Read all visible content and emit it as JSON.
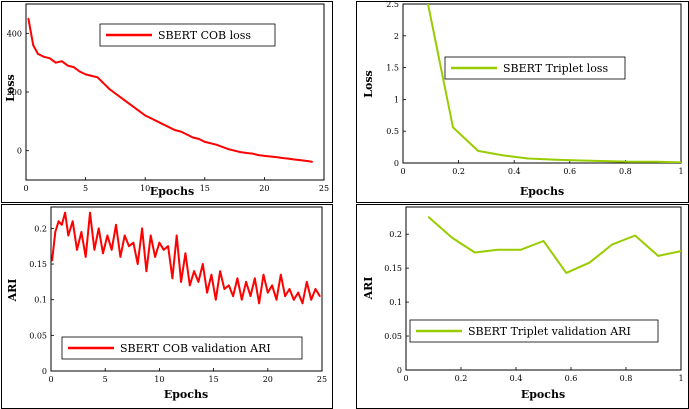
{
  "chart_data": [
    {
      "type": "line",
      "title": "",
      "xlabel": "Epochs",
      "ylabel": "Loss",
      "xlim": [
        0,
        25
      ],
      "ylim": [
        -100,
        500
      ],
      "xticks": [
        0,
        5,
        10,
        15,
        20,
        25
      ],
      "yticks": [
        0,
        200,
        400
      ],
      "legend_loc": "top-right",
      "series": [
        {
          "name": "SBERT COB loss",
          "color": "#ff0000",
          "x": [
            0.2,
            0.6,
            1,
            1.5,
            2,
            2.5,
            3,
            3.5,
            4,
            4.5,
            5,
            5.5,
            6,
            6.5,
            7,
            7.5,
            8,
            8.5,
            9,
            9.5,
            10,
            10.5,
            11,
            11.5,
            12,
            12.5,
            13,
            13.5,
            14,
            14.5,
            15,
            15.5,
            16,
            16.5,
            17,
            17.5,
            18,
            18.5,
            19,
            19.5,
            20,
            20.5,
            21,
            21.5,
            22,
            22.5,
            23,
            23.5,
            24
          ],
          "y": [
            450,
            360,
            330,
            320,
            315,
            300,
            305,
            290,
            285,
            270,
            260,
            255,
            250,
            230,
            210,
            195,
            180,
            165,
            150,
            135,
            120,
            110,
            100,
            90,
            80,
            70,
            65,
            55,
            45,
            40,
            30,
            25,
            20,
            12,
            5,
            0,
            -5,
            -8,
            -10,
            -15,
            -18,
            -20,
            -22,
            -25,
            -27,
            -30,
            -32,
            -35,
            -38
          ]
        }
      ]
    },
    {
      "type": "line",
      "title": "",
      "xlabel": "Epochs",
      "ylabel": "Loss",
      "xlim": [
        0,
        1
      ],
      "ylim": [
        0,
        2.5
      ],
      "xticks": [
        0,
        0.2,
        0.4,
        0.6,
        0.8,
        1
      ],
      "yticks": [
        0,
        0.5,
        1,
        1.5,
        2,
        2.5
      ],
      "legend_loc": "center-right",
      "series": [
        {
          "name": "SBERT Triplet loss",
          "color": "#99cc00",
          "x": [
            0.09,
            0.18,
            0.27,
            0.36,
            0.45,
            0.55,
            0.64,
            0.73,
            0.82,
            0.91,
            1.0
          ],
          "y": [
            2.5,
            0.56,
            0.19,
            0.12,
            0.07,
            0.05,
            0.04,
            0.03,
            0.02,
            0.02,
            0.01
          ]
        }
      ]
    },
    {
      "type": "line",
      "title": "",
      "xlabel": "Epochs",
      "ylabel": "ARI",
      "xlim": [
        0,
        25
      ],
      "ylim": [
        0,
        0.23
      ],
      "xticks": [
        0,
        5,
        10,
        15,
        20,
        25
      ],
      "yticks": [
        0,
        0.05,
        0.1,
        0.15,
        0.2
      ],
      "legend_loc": "bottom-right",
      "series": [
        {
          "name": "SBERT COB validation ARI",
          "color": "#ff0000",
          "x": [
            0.1,
            0.4,
            0.7,
            1,
            1.3,
            1.6,
            2,
            2.4,
            2.8,
            3.2,
            3.6,
            4,
            4.4,
            4.8,
            5.2,
            5.6,
            6,
            6.4,
            6.8,
            7.2,
            7.6,
            8,
            8.4,
            8.8,
            9.2,
            9.6,
            10,
            10.4,
            10.8,
            11.2,
            11.6,
            12,
            12.4,
            12.8,
            13.2,
            13.6,
            14,
            14.4,
            14.8,
            15.2,
            15.6,
            16,
            16.4,
            16.8,
            17.2,
            17.6,
            18,
            18.4,
            18.8,
            19.2,
            19.6,
            20,
            20.4,
            20.8,
            21.2,
            21.6,
            22,
            22.4,
            22.8,
            23.2,
            23.6,
            24,
            24.4,
            24.8
          ],
          "y": [
            0.155,
            0.195,
            0.21,
            0.205,
            0.222,
            0.19,
            0.21,
            0.17,
            0.195,
            0.16,
            0.222,
            0.17,
            0.2,
            0.165,
            0.19,
            0.17,
            0.205,
            0.16,
            0.19,
            0.175,
            0.18,
            0.15,
            0.2,
            0.14,
            0.19,
            0.16,
            0.18,
            0.17,
            0.175,
            0.13,
            0.19,
            0.125,
            0.165,
            0.12,
            0.14,
            0.125,
            0.15,
            0.11,
            0.135,
            0.1,
            0.14,
            0.115,
            0.12,
            0.105,
            0.13,
            0.1,
            0.125,
            0.105,
            0.13,
            0.095,
            0.135,
            0.11,
            0.12,
            0.1,
            0.135,
            0.105,
            0.115,
            0.1,
            0.11,
            0.095,
            0.125,
            0.1,
            0.115,
            0.105
          ]
        }
      ]
    },
    {
      "type": "line",
      "title": "",
      "xlabel": "Epochs",
      "ylabel": "ARI",
      "xlim": [
        0,
        1
      ],
      "ylim": [
        0,
        0.24
      ],
      "xticks": [
        0,
        0.2,
        0.4,
        0.6,
        0.8,
        1
      ],
      "yticks": [
        0,
        0.05,
        0.1,
        0.15,
        0.2
      ],
      "legend_loc": "bottom-right",
      "series": [
        {
          "name": "SBERT Triplet validation ARI",
          "color": "#99cc00",
          "x": [
            0.083,
            0.167,
            0.25,
            0.333,
            0.417,
            0.5,
            0.583,
            0.667,
            0.75,
            0.833,
            0.917,
            1.0
          ],
          "y": [
            0.225,
            0.195,
            0.173,
            0.177,
            0.177,
            0.19,
            0.143,
            0.158,
            0.185,
            0.198,
            0.168,
            0.175
          ]
        }
      ]
    }
  ]
}
